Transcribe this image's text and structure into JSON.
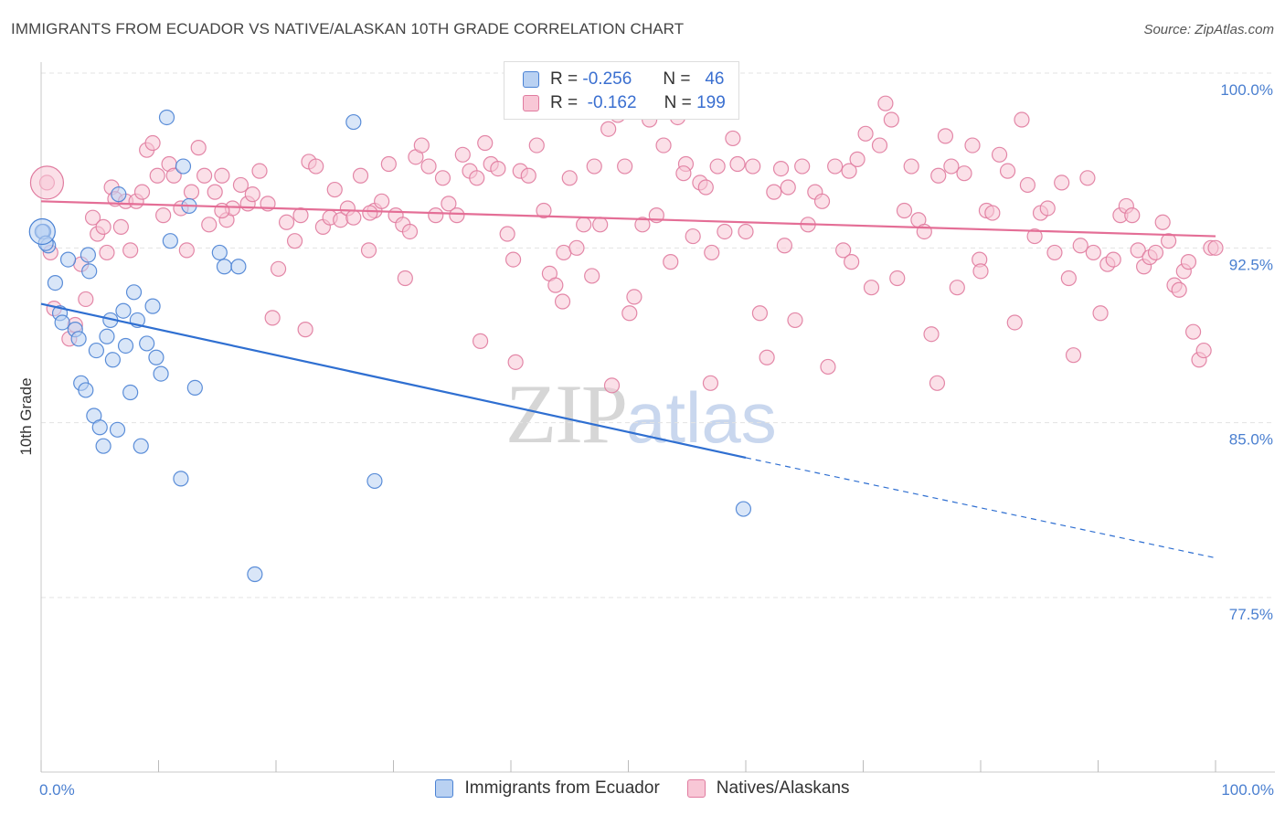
{
  "title": "IMMIGRANTS FROM ECUADOR VS NATIVE/ALASKAN 10TH GRADE CORRELATION CHART",
  "source": "Source: ZipAtlas.com",
  "watermark": {
    "zip": "ZIP",
    "atlas": "atlas"
  },
  "legend": {
    "rows": [
      {
        "r_label": "R =",
        "r_value": "-0.256",
        "n_label": "N =",
        "n_value": "46"
      },
      {
        "r_label": "R =",
        "r_value": "-0.162",
        "n_label": "N =",
        "n_value": "199"
      }
    ]
  },
  "colors": {
    "blue": "#4a82d4",
    "blue_fill": "#b9d1f2",
    "blue_line": "#2f6fd1",
    "pink": "#e07b9f",
    "pink_fill": "#f8c7d6",
    "pink_line": "#e46e96",
    "grid": "#e3e3e3",
    "axis_label": "#4a7fd0"
  },
  "chart_data": {
    "type": "scatter",
    "title": "IMMIGRANTS FROM ECUADOR VS NATIVE/ALASKAN 10TH GRADE CORRELATION CHART",
    "xlabel": "",
    "ylabel": "10th Grade",
    "xlim": [
      0,
      100
    ],
    "ylim": [
      70.0,
      102.0
    ],
    "x_tick_labels": [
      "0.0%",
      "100.0%"
    ],
    "y_ticks": [
      77.5,
      85.0,
      92.5,
      100.0
    ],
    "y_tick_labels": [
      "77.5%",
      "85.0%",
      "92.5%",
      "100.0%"
    ],
    "grid": true,
    "legend_position": "bottom",
    "series": [
      {
        "name": "Immigrants from Ecuador",
        "color": "#4a82d4",
        "trend": {
          "x0": 0,
          "y0": 90.1,
          "x1": 60,
          "y1": 83.5,
          "dash_to_x": 100,
          "dash_to_y": 79.2
        },
        "points": [
          [
            0.2,
            93.2
          ],
          [
            0.6,
            92.6
          ],
          [
            1.2,
            91.0
          ],
          [
            1.6,
            89.7
          ],
          [
            1.8,
            89.3
          ],
          [
            2.3,
            92.0
          ],
          [
            2.9,
            89.0
          ],
          [
            3.2,
            88.6
          ],
          [
            3.4,
            86.7
          ],
          [
            3.8,
            86.4
          ],
          [
            4.0,
            92.2
          ],
          [
            4.1,
            91.5
          ],
          [
            4.5,
            85.3
          ],
          [
            4.7,
            88.1
          ],
          [
            5.0,
            84.8
          ],
          [
            5.3,
            84.0
          ],
          [
            5.6,
            88.7
          ],
          [
            5.9,
            89.4
          ],
          [
            6.1,
            87.7
          ],
          [
            6.5,
            84.7
          ],
          [
            6.6,
            94.8
          ],
          [
            7.0,
            89.8
          ],
          [
            7.2,
            88.3
          ],
          [
            7.6,
            86.3
          ],
          [
            7.9,
            90.6
          ],
          [
            8.2,
            89.4
          ],
          [
            8.5,
            84.0
          ],
          [
            9.0,
            88.4
          ],
          [
            9.5,
            90.0
          ],
          [
            9.8,
            87.8
          ],
          [
            10.2,
            87.1
          ],
          [
            10.7,
            98.1
          ],
          [
            11.0,
            92.8
          ],
          [
            12.1,
            96.0
          ],
          [
            11.9,
            82.6
          ],
          [
            12.6,
            94.3
          ],
          [
            13.1,
            86.5
          ],
          [
            15.2,
            92.3
          ],
          [
            15.6,
            91.7
          ],
          [
            16.8,
            91.7
          ],
          [
            18.2,
            78.5
          ],
          [
            26.6,
            97.9
          ],
          [
            28.4,
            82.5
          ],
          [
            59.8,
            81.3
          ],
          [
            0.1,
            93.2
          ],
          [
            0.4,
            92.7
          ]
        ]
      },
      {
        "name": "Natives/Alaskans",
        "color": "#e07b9f",
        "trend": {
          "x0": 0,
          "y0": 94.5,
          "x1": 100,
          "y1": 93.0
        },
        "points": [
          [
            0.5,
            95.3
          ],
          [
            0.8,
            92.3
          ],
          [
            1.1,
            89.9
          ],
          [
            2.4,
            88.6
          ],
          [
            2.9,
            89.2
          ],
          [
            3.4,
            91.8
          ],
          [
            3.8,
            90.3
          ],
          [
            4.4,
            93.8
          ],
          [
            4.8,
            93.1
          ],
          [
            5.3,
            93.4
          ],
          [
            5.6,
            92.3
          ],
          [
            6.0,
            95.1
          ],
          [
            6.3,
            94.6
          ],
          [
            6.8,
            93.4
          ],
          [
            7.2,
            94.5
          ],
          [
            7.6,
            92.4
          ],
          [
            8.1,
            94.5
          ],
          [
            8.6,
            94.9
          ],
          [
            9.0,
            96.7
          ],
          [
            9.5,
            97.0
          ],
          [
            9.9,
            95.6
          ],
          [
            10.4,
            93.9
          ],
          [
            10.9,
            96.1
          ],
          [
            11.3,
            95.6
          ],
          [
            11.9,
            94.2
          ],
          [
            12.8,
            94.9
          ],
          [
            13.4,
            96.8
          ],
          [
            13.9,
            95.6
          ],
          [
            14.3,
            93.5
          ],
          [
            14.8,
            94.9
          ],
          [
            15.4,
            95.6
          ],
          [
            15.8,
            93.7
          ],
          [
            16.3,
            94.2
          ],
          [
            17.0,
            95.2
          ],
          [
            17.6,
            94.4
          ],
          [
            18.0,
            94.8
          ],
          [
            18.6,
            95.8
          ],
          [
            19.3,
            94.4
          ],
          [
            19.7,
            89.5
          ],
          [
            20.2,
            91.6
          ],
          [
            20.9,
            93.6
          ],
          [
            21.6,
            92.8
          ],
          [
            22.1,
            93.9
          ],
          [
            22.8,
            96.2
          ],
          [
            23.4,
            96.0
          ],
          [
            24.0,
            93.4
          ],
          [
            24.6,
            93.8
          ],
          [
            25.0,
            95.0
          ],
          [
            25.5,
            93.7
          ],
          [
            26.1,
            94.2
          ],
          [
            26.6,
            93.8
          ],
          [
            27.2,
            95.6
          ],
          [
            27.9,
            92.4
          ],
          [
            28.4,
            94.1
          ],
          [
            29.0,
            94.5
          ],
          [
            29.6,
            96.1
          ],
          [
            30.2,
            93.9
          ],
          [
            30.8,
            93.5
          ],
          [
            31.4,
            93.2
          ],
          [
            31.9,
            96.4
          ],
          [
            32.4,
            96.9
          ],
          [
            33.0,
            96.0
          ],
          [
            33.6,
            93.9
          ],
          [
            34.2,
            95.5
          ],
          [
            34.7,
            94.4
          ],
          [
            35.4,
            93.9
          ],
          [
            35.9,
            96.5
          ],
          [
            36.5,
            95.8
          ],
          [
            37.1,
            95.5
          ],
          [
            37.8,
            97.0
          ],
          [
            38.3,
            96.1
          ],
          [
            38.9,
            95.9
          ],
          [
            39.7,
            93.1
          ],
          [
            40.2,
            92.0
          ],
          [
            40.8,
            95.8
          ],
          [
            41.5,
            95.6
          ],
          [
            42.2,
            96.9
          ],
          [
            42.8,
            94.1
          ],
          [
            43.3,
            91.4
          ],
          [
            43.8,
            90.9
          ],
          [
            44.5,
            92.3
          ],
          [
            45.0,
            95.5
          ],
          [
            45.6,
            92.5
          ],
          [
            46.2,
            93.5
          ],
          [
            46.9,
            91.3
          ],
          [
            47.6,
            93.5
          ],
          [
            48.3,
            97.6
          ],
          [
            48.6,
            86.6
          ],
          [
            49.1,
            98.2
          ],
          [
            49.7,
            96.0
          ],
          [
            50.1,
            89.7
          ],
          [
            50.5,
            90.4
          ],
          [
            51.2,
            93.5
          ],
          [
            51.8,
            98.0
          ],
          [
            52.4,
            93.9
          ],
          [
            53.0,
            96.9
          ],
          [
            53.6,
            91.9
          ],
          [
            54.2,
            98.1
          ],
          [
            54.9,
            96.1
          ],
          [
            55.5,
            93.0
          ],
          [
            56.1,
            95.3
          ],
          [
            56.6,
            95.1
          ],
          [
            57.1,
            92.3
          ],
          [
            57.6,
            96.0
          ],
          [
            58.2,
            93.2
          ],
          [
            58.9,
            97.2
          ],
          [
            59.3,
            96.1
          ],
          [
            60.0,
            93.2
          ],
          [
            60.6,
            96.0
          ],
          [
            61.2,
            89.7
          ],
          [
            61.8,
            87.8
          ],
          [
            62.4,
            94.9
          ],
          [
            63.0,
            95.9
          ],
          [
            63.6,
            95.1
          ],
          [
            64.2,
            89.4
          ],
          [
            64.8,
            96.0
          ],
          [
            65.3,
            93.5
          ],
          [
            65.9,
            94.9
          ],
          [
            66.5,
            94.5
          ],
          [
            67.0,
            87.4
          ],
          [
            67.6,
            96.0
          ],
          [
            68.3,
            92.4
          ],
          [
            68.8,
            95.8
          ],
          [
            69.5,
            96.3
          ],
          [
            70.2,
            97.4
          ],
          [
            70.7,
            90.8
          ],
          [
            71.4,
            96.9
          ],
          [
            71.9,
            98.7
          ],
          [
            72.4,
            98.0
          ],
          [
            72.9,
            91.2
          ],
          [
            73.5,
            94.1
          ],
          [
            74.1,
            96.0
          ],
          [
            74.7,
            93.7
          ],
          [
            75.2,
            93.2
          ],
          [
            75.8,
            88.8
          ],
          [
            76.4,
            95.6
          ],
          [
            77.0,
            97.3
          ],
          [
            77.5,
            96.0
          ],
          [
            78.0,
            90.8
          ],
          [
            78.6,
            95.7
          ],
          [
            79.3,
            96.9
          ],
          [
            79.9,
            92.0
          ],
          [
            80.5,
            94.1
          ],
          [
            81.0,
            94.0
          ],
          [
            81.6,
            96.5
          ],
          [
            82.3,
            95.8
          ],
          [
            82.9,
            89.3
          ],
          [
            83.5,
            98.0
          ],
          [
            84.0,
            95.2
          ],
          [
            84.6,
            93.0
          ],
          [
            85.1,
            94.0
          ],
          [
            85.7,
            94.2
          ],
          [
            86.3,
            92.3
          ],
          [
            86.9,
            95.3
          ],
          [
            87.5,
            91.2
          ],
          [
            87.9,
            87.9
          ],
          [
            88.5,
            92.6
          ],
          [
            89.1,
            95.5
          ],
          [
            89.6,
            92.3
          ],
          [
            90.2,
            89.7
          ],
          [
            90.8,
            91.8
          ],
          [
            91.3,
            92.0
          ],
          [
            91.9,
            93.9
          ],
          [
            92.4,
            94.3
          ],
          [
            92.9,
            93.9
          ],
          [
            93.4,
            92.4
          ],
          [
            93.9,
            91.7
          ],
          [
            94.4,
            92.1
          ],
          [
            94.9,
            92.3
          ],
          [
            95.5,
            93.6
          ],
          [
            96.0,
            92.8
          ],
          [
            96.5,
            90.9
          ],
          [
            96.9,
            90.7
          ],
          [
            97.3,
            91.5
          ],
          [
            97.7,
            91.9
          ],
          [
            98.1,
            88.9
          ],
          [
            98.6,
            87.7
          ],
          [
            99.0,
            88.1
          ],
          [
            99.6,
            92.5
          ],
          [
            100.0,
            92.5
          ],
          [
            22.5,
            89.0
          ],
          [
            15.4,
            94.1
          ],
          [
            40.4,
            87.6
          ],
          [
            76.3,
            86.7
          ],
          [
            57.0,
            86.7
          ],
          [
            37.4,
            88.5
          ],
          [
            54.7,
            95.7
          ],
          [
            31.0,
            91.2
          ],
          [
            63.3,
            92.6
          ],
          [
            44.4,
            90.2
          ],
          [
            80.0,
            91.5
          ],
          [
            12.4,
            92.4
          ],
          [
            28.0,
            94.0
          ],
          [
            47.1,
            96.0
          ],
          [
            69.0,
            91.9
          ]
        ]
      }
    ]
  },
  "bottom_legend": {
    "items": [
      "Immigrants from Ecuador",
      "Natives/Alaskans"
    ]
  }
}
